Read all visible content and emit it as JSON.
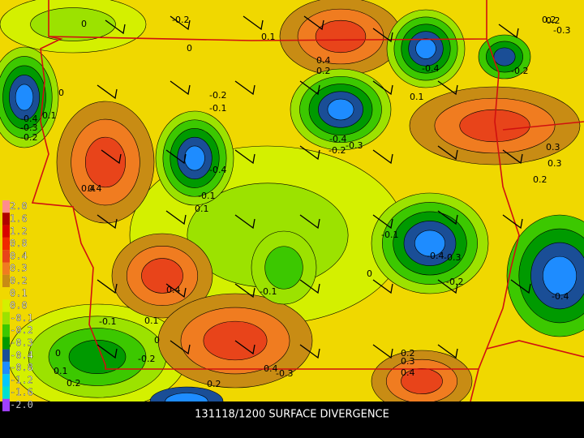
{
  "map": {
    "title": "131118/1200 SURFACE DIVERGENCE",
    "legend": [
      {
        "label": "2.0",
        "color": "#ff8c8c"
      },
      {
        "label": "1.6",
        "color": "#b00000"
      },
      {
        "label": "1.2",
        "color": "#d80000"
      },
      {
        "label": "0.8",
        "color": "#f02800"
      },
      {
        "label": "0.4",
        "color": "#e8441a"
      },
      {
        "label": "0.3",
        "color": "#f07c20"
      },
      {
        "label": "0.2",
        "color": "#c88c14"
      },
      {
        "label": "0.1",
        "color": "#f0d800"
      },
      {
        "label": "0.0",
        "color": "#d4f000"
      },
      {
        "label": "-0.1",
        "color": "#9ce200"
      },
      {
        "label": "-0.2",
        "color": "#3cc800"
      },
      {
        "label": "-0.3",
        "color": "#009a00"
      },
      {
        "label": "-0.4",
        "color": "#1a4e96"
      },
      {
        "label": "-0.8",
        "color": "#1e8cff"
      },
      {
        "label": "-1.2",
        "color": "#00c8ff"
      },
      {
        "label": "-1.6",
        "color": "#00e0d0"
      },
      {
        "label": "-2.0",
        "color": "#a040ff"
      }
    ],
    "contour_labels": [
      "0",
      "-0.2",
      "0.1",
      "0",
      "0.4",
      "0.2",
      "-0.4",
      "0.1",
      "-0.2",
      "0.2",
      "-0.3",
      "0",
      "-0.4",
      "-0.3",
      "0.1",
      "-0.2",
      "0.4",
      "-0.2",
      "-0.1",
      "0.1",
      "0.4",
      "0.3",
      "0.2",
      "-0.4",
      "-0.2",
      "-0.4",
      "-0.3",
      "-0.1",
      "0",
      "-0.1",
      "0.4",
      "-0.4",
      "-0.2",
      "-0.3",
      "-0.4",
      "-0.1",
      "-0.2",
      "0.1",
      "0",
      "0.2",
      "0.3",
      "0.4",
      "-0.3",
      "0.4",
      "0",
      "0.1",
      "0.2",
      "0.2",
      "-0.1",
      "0.2",
      "0.3"
    ]
  }
}
